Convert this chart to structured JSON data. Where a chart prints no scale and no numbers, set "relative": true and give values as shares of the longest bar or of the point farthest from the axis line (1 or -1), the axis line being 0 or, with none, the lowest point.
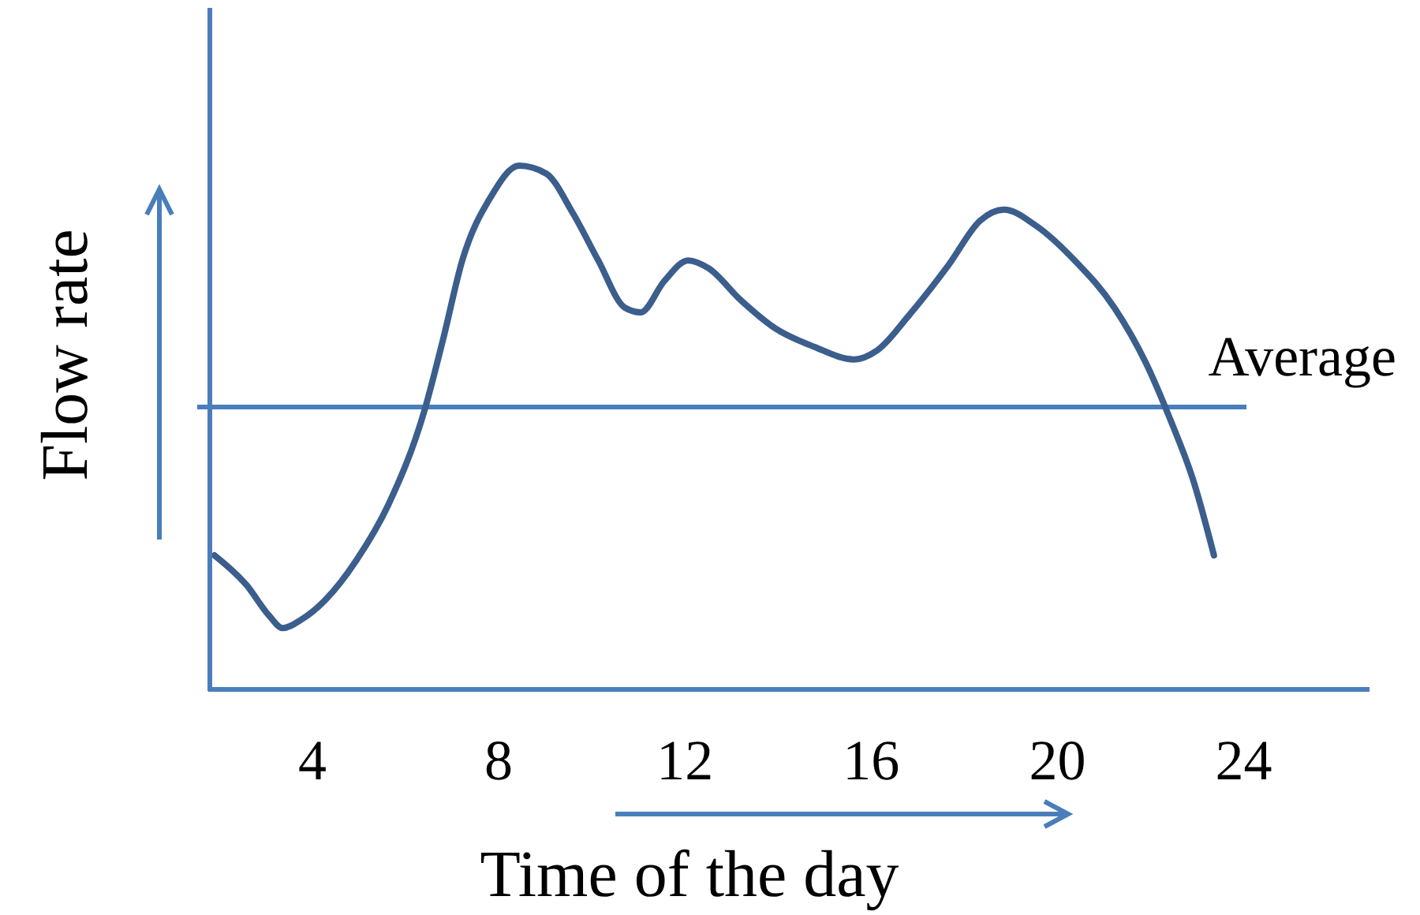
{
  "chart_data": {
    "type": "line",
    "xlabel": "Time of the day",
    "ylabel": "Flow rate",
    "relative": true,
    "tick_labels": "x",
    "xlim": [
      1.8,
      26.7
    ],
    "xticks": [
      4,
      8,
      12,
      16,
      20,
      24
    ],
    "x": [
      1.9,
      2.58,
      3.08,
      3.36,
      3.76,
      4.27,
      4.95,
      5.63,
      6.41,
      6.81,
      7.22,
      7.83,
      8.44,
      9.02,
      9.59,
      10.14,
      10.71,
      11.05,
      11.56,
      12.07,
      12.51,
      13.19,
      13.93,
      14.78,
      15.63,
      16.14,
      16.81,
      17.66,
      18.34,
      18.85,
      19.53,
      20.37,
      21.22,
      21.9,
      22.41,
      22.92,
      23.36
    ],
    "series": [
      {
        "color": "#3b5e8c",
        "values": [
          0.256,
          0.2,
          0.14,
          0.117,
          0.133,
          0.17,
          0.247,
          0.352,
          0.533,
          0.669,
          0.819,
          0.94,
          1,
          0.985,
          0.91,
          0.819,
          0.729,
          0.72,
          0.78,
          0.819,
          0.804,
          0.744,
          0.69,
          0.654,
          0.63,
          0.648,
          0.714,
          0.81,
          0.895,
          0.916,
          0.886,
          0.819,
          0.729,
          0.623,
          0.518,
          0.398,
          0.256
        ]
      }
    ],
    "ref_lines": [
      {
        "axis": "y",
        "value": 0.539,
        "label": "Average",
        "color": "#4a7ebb"
      }
    ]
  }
}
